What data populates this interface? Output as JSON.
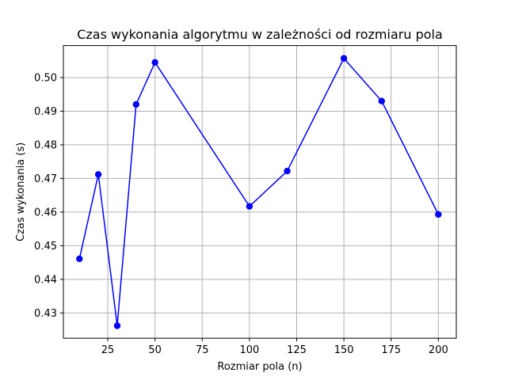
{
  "chart_data": {
    "type": "line",
    "title": "Czas wykonania algorytmu w zależności od rozmiaru pola",
    "xlabel": "Rozmiar pola (n)",
    "ylabel": "Czas wykonania (s)",
    "xlim": [
      1.5,
      209.5
    ],
    "ylim": [
      0.4225,
      0.5095
    ],
    "xticks": [
      25,
      50,
      75,
      100,
      125,
      150,
      175,
      200
    ],
    "xtick_labels": [
      "25",
      "50",
      "75",
      "100",
      "125",
      "150",
      "175",
      "200"
    ],
    "yticks": [
      0.43,
      0.44,
      0.45,
      0.46,
      0.47,
      0.48,
      0.49,
      0.5
    ],
    "ytick_labels": [
      "0.43",
      "0.44",
      "0.45",
      "0.46",
      "0.47",
      "0.48",
      "0.49",
      "0.50"
    ],
    "grid": true,
    "series": [
      {
        "color": "#0000ff",
        "marker": "circle",
        "x": [
          10,
          20,
          30,
          40,
          50,
          100,
          120,
          150,
          170,
          200
        ],
        "y": [
          0.4461,
          0.4712,
          0.4262,
          0.492,
          0.5045,
          0.4617,
          0.4722,
          0.5057,
          0.493,
          0.4593
        ]
      }
    ]
  }
}
